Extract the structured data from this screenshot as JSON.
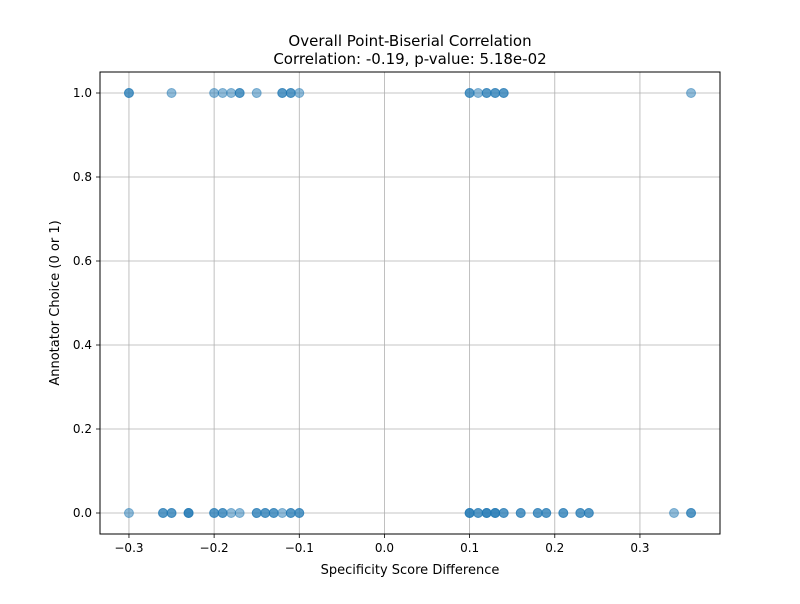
{
  "chart_data": {
    "type": "scatter",
    "title": "Overall Point-Biserial Correlation",
    "subtitle": "Correlation: -0.19, p-value: 5.18e-02",
    "xlabel": "Specificity Score Difference",
    "ylabel": "Annotator Choice (0 or 1)",
    "xlim": [
      -0.334,
      0.394
    ],
    "ylim": [
      -0.05,
      1.05
    ],
    "x_ticks": [
      -0.3,
      -0.2,
      -0.1,
      0.0,
      0.1,
      0.2,
      0.3
    ],
    "x_tick_labels": [
      "−0.3",
      "−0.2",
      "−0.1",
      "0.0",
      "0.1",
      "0.2",
      "0.3"
    ],
    "y_ticks": [
      0.0,
      0.2,
      0.4,
      0.6,
      0.8,
      1.0
    ],
    "y_tick_labels": [
      "0.0",
      "0.2",
      "0.4",
      "0.6",
      "0.8",
      "1.0"
    ],
    "grid": true,
    "legend": "none",
    "marker_color": "#1f77b4",
    "marker_alpha": 0.5,
    "series": [
      {
        "points": [
          {
            "x": -0.3,
            "y": 1
          },
          {
            "x": -0.3,
            "y": 1
          },
          {
            "x": -0.25,
            "y": 1
          },
          {
            "x": -0.2,
            "y": 1
          },
          {
            "x": -0.19,
            "y": 1
          },
          {
            "x": -0.18,
            "y": 1
          },
          {
            "x": -0.17,
            "y": 1
          },
          {
            "x": -0.17,
            "y": 1
          },
          {
            "x": -0.15,
            "y": 1
          },
          {
            "x": -0.12,
            "y": 1
          },
          {
            "x": -0.12,
            "y": 1
          },
          {
            "x": -0.11,
            "y": 1
          },
          {
            "x": -0.11,
            "y": 1
          },
          {
            "x": -0.1,
            "y": 1
          },
          {
            "x": 0.1,
            "y": 1
          },
          {
            "x": 0.1,
            "y": 1
          },
          {
            "x": 0.11,
            "y": 1
          },
          {
            "x": 0.12,
            "y": 1
          },
          {
            "x": 0.12,
            "y": 1
          },
          {
            "x": 0.13,
            "y": 1
          },
          {
            "x": 0.13,
            "y": 1
          },
          {
            "x": 0.14,
            "y": 1
          },
          {
            "x": 0.14,
            "y": 1
          },
          {
            "x": 0.36,
            "y": 1
          },
          {
            "x": -0.3,
            "y": 0
          },
          {
            "x": -0.26,
            "y": 0
          },
          {
            "x": -0.26,
            "y": 0
          },
          {
            "x": -0.25,
            "y": 0
          },
          {
            "x": -0.25,
            "y": 0
          },
          {
            "x": -0.23,
            "y": 0
          },
          {
            "x": -0.23,
            "y": 0
          },
          {
            "x": -0.23,
            "y": 0
          },
          {
            "x": -0.2,
            "y": 0
          },
          {
            "x": -0.2,
            "y": 0
          },
          {
            "x": -0.19,
            "y": 0
          },
          {
            "x": -0.19,
            "y": 0
          },
          {
            "x": -0.18,
            "y": 0
          },
          {
            "x": -0.17,
            "y": 0
          },
          {
            "x": -0.15,
            "y": 0
          },
          {
            "x": -0.15,
            "y": 0
          },
          {
            "x": -0.14,
            "y": 0
          },
          {
            "x": -0.14,
            "y": 0
          },
          {
            "x": -0.13,
            "y": 0
          },
          {
            "x": -0.13,
            "y": 0
          },
          {
            "x": -0.12,
            "y": 0
          },
          {
            "x": -0.11,
            "y": 0
          },
          {
            "x": -0.11,
            "y": 0
          },
          {
            "x": -0.1,
            "y": 0
          },
          {
            "x": -0.1,
            "y": 0
          },
          {
            "x": 0.1,
            "y": 0
          },
          {
            "x": 0.1,
            "y": 0
          },
          {
            "x": 0.1,
            "y": 0
          },
          {
            "x": 0.11,
            "y": 0
          },
          {
            "x": 0.11,
            "y": 0
          },
          {
            "x": 0.12,
            "y": 0
          },
          {
            "x": 0.12,
            "y": 0
          },
          {
            "x": 0.12,
            "y": 0
          },
          {
            "x": 0.13,
            "y": 0
          },
          {
            "x": 0.13,
            "y": 0
          },
          {
            "x": 0.13,
            "y": 0
          },
          {
            "x": 0.14,
            "y": 0
          },
          {
            "x": 0.14,
            "y": 0
          },
          {
            "x": 0.16,
            "y": 0
          },
          {
            "x": 0.16,
            "y": 0
          },
          {
            "x": 0.18,
            "y": 0
          },
          {
            "x": 0.18,
            "y": 0
          },
          {
            "x": 0.19,
            "y": 0
          },
          {
            "x": 0.19,
            "y": 0
          },
          {
            "x": 0.21,
            "y": 0
          },
          {
            "x": 0.21,
            "y": 0
          },
          {
            "x": 0.23,
            "y": 0
          },
          {
            "x": 0.23,
            "y": 0
          },
          {
            "x": 0.24,
            "y": 0
          },
          {
            "x": 0.24,
            "y": 0
          },
          {
            "x": 0.34,
            "y": 0
          },
          {
            "x": 0.36,
            "y": 0
          },
          {
            "x": 0.36,
            "y": 0
          }
        ]
      }
    ]
  }
}
